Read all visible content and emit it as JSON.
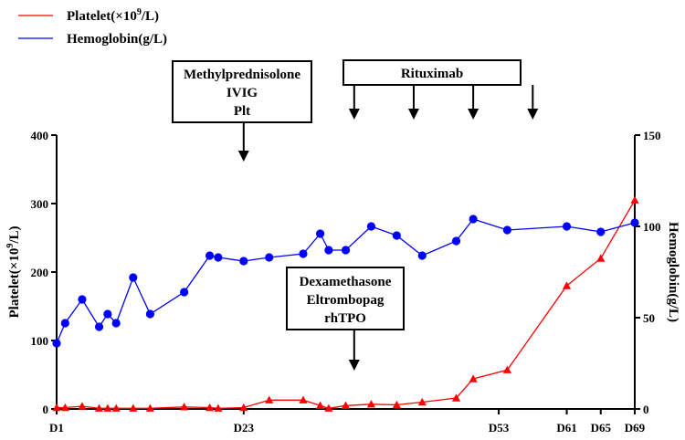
{
  "chart_data": {
    "type": "line",
    "title": "",
    "x_tick_labels": [
      "D1",
      "D23",
      "D53",
      "D61",
      "D65",
      "D69"
    ],
    "x_tick_days": [
      1,
      23,
      53,
      61,
      65,
      69
    ],
    "xlim": [
      1,
      69
    ],
    "left_axis": {
      "label_prefix": "Platelet(×10",
      "label_sup": "9",
      "label_suffix": "/L)",
      "ylim": [
        0,
        400
      ],
      "ticks": [
        "0",
        "100",
        "200",
        "300",
        "400"
      ]
    },
    "right_axis": {
      "label": "Hemoglobin(g/L)",
      "ylim": [
        0,
        150
      ],
      "ticks": [
        "0",
        "50",
        "100",
        "150"
      ]
    },
    "series": [
      {
        "name": "Platelet",
        "legend_prefix": "Platelet(×10",
        "legend_sup": "9",
        "legend_suffix": "/L)",
        "color": "#ff0000",
        "marker": "triangle",
        "axis": "left",
        "x": [
          1,
          2,
          4,
          6,
          7,
          8,
          10,
          12,
          16,
          19,
          20,
          23,
          26,
          30,
          32,
          33,
          35,
          38,
          41,
          44,
          48,
          50,
          54,
          61,
          65,
          69
        ],
        "values": [
          2,
          2,
          4,
          1,
          1,
          1,
          1,
          1,
          3,
          2,
          1,
          2,
          13,
          13,
          5,
          1,
          5,
          7,
          6,
          10,
          16,
          44,
          57,
          180,
          220,
          305
        ]
      },
      {
        "name": "Hemoglobin",
        "legend_text": "Hemoglobin(g/L)",
        "color": "#0000ff",
        "marker": "circle",
        "axis": "right",
        "x": [
          1,
          2,
          4,
          6,
          7,
          8,
          10,
          12,
          16,
          19,
          20,
          23,
          26,
          30,
          32,
          33,
          35,
          38,
          41,
          44,
          48,
          50,
          54,
          61,
          65,
          69
        ],
        "values": [
          36,
          47,
          60,
          45,
          52,
          47,
          72,
          52,
          64,
          84,
          83,
          81,
          83,
          85,
          96,
          87,
          87,
          100,
          95,
          84,
          92,
          104,
          98,
          100,
          97,
          102
        ]
      }
    ],
    "annotations": {
      "methyl_box": {
        "lines": [
          "Methylprednisolone",
          "IVIG",
          "Plt"
        ],
        "arrow_days": [
          23
        ]
      },
      "ritux_box": {
        "lines": [
          "Rituximab"
        ],
        "arrow_days": [
          36,
          43,
          50,
          57
        ]
      },
      "dexa_box": {
        "lines": [
          "Dexamethasone",
          "Eltrombopag",
          "rhTPO"
        ],
        "arrow_days": [
          36
        ]
      }
    }
  }
}
